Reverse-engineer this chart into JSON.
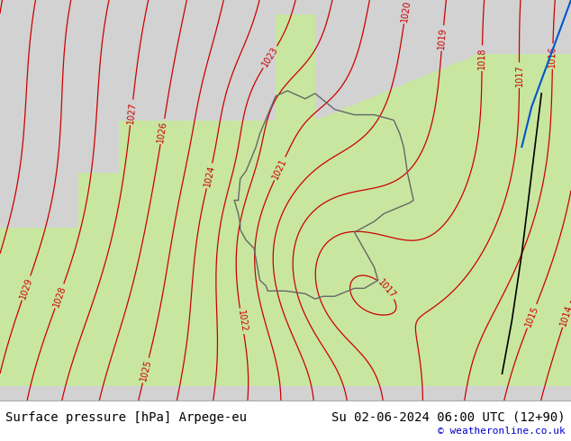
{
  "title_left": "Surface pressure [hPa] Arpege-eu",
  "title_right": "Su 02-06-2024 06:00 UTC (12+90)",
  "copyright": "© weatheronline.co.uk",
  "bg_color_outside": "#d8d8d8",
  "bg_color_land": "#c8e8a0",
  "bg_color_germany": "#a8d878",
  "contour_color": "#cc0000",
  "label_color": "#cc0000",
  "footer_bg": "#ffffff",
  "footer_text_color": "#000000",
  "copyright_color": "#0000cc",
  "font_size_footer": 10,
  "font_size_copyright": 8,
  "border_color_country": "#666666",
  "border_color_coast": "#000000",
  "blue_line_color": "#0055cc",
  "black_line_color": "#000000"
}
